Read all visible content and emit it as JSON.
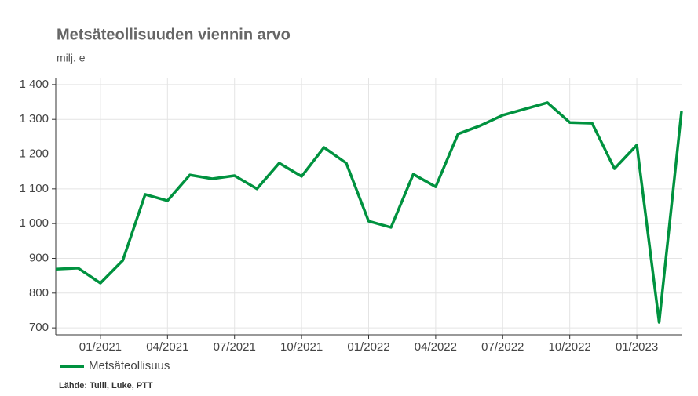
{
  "chart_data": {
    "type": "line",
    "title": "Metsäteollisuuden viennin arvo",
    "subtitle": "milj. e",
    "source": "Lähde: Tulli, Luke, PTT",
    "categories": [
      null,
      null,
      "01/2021",
      null,
      null,
      "04/2021",
      null,
      null,
      "07/2021",
      null,
      null,
      "10/2021",
      null,
      null,
      "01/2022",
      null,
      null,
      "04/2022",
      null,
      null,
      "07/2022",
      null,
      null,
      "10/2022",
      null,
      null,
      "01/2023",
      null,
      null
    ],
    "series": [
      {
        "name": "Metsäteollisuus",
        "color": "#00923f",
        "values": [
          869,
          872,
          829,
          894,
          1084,
          1066,
          1140,
          1129,
          1138,
          1100,
          1174,
          1136,
          1219,
          1174,
          1007,
          989,
          1142,
          1106,
          1258,
          1282,
          1312,
          1330,
          1348,
          1291,
          1289,
          1158,
          1226,
          716,
          1323
        ]
      }
    ],
    "ylim": [
      680,
      1420
    ],
    "yticks": [
      700,
      800,
      900,
      {
        "value": 1000,
        "label": "1 000"
      },
      {
        "value": 1100,
        "label": "1 100"
      },
      {
        "value": 1200,
        "label": "1 200"
      },
      {
        "value": 1300,
        "label": "1 300"
      },
      {
        "value": 1400,
        "label": "1 400"
      }
    ],
    "grid": true
  }
}
